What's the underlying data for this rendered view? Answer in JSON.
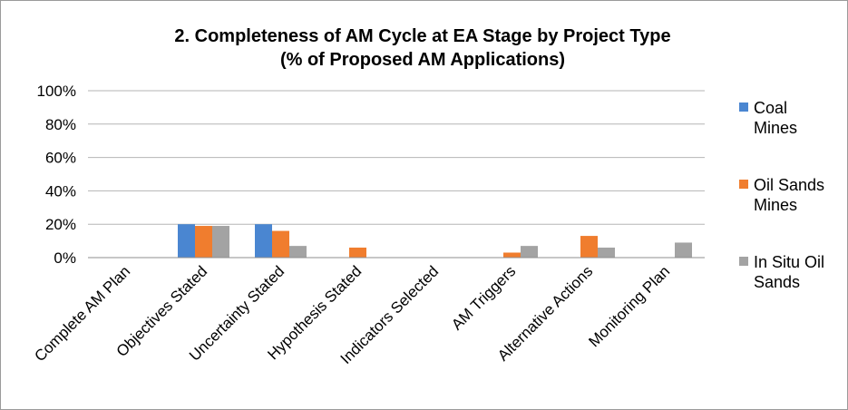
{
  "chart_data": {
    "type": "bar",
    "title": "2. Completeness of AM Cycle at EA Stage by Project Type",
    "subtitle": "(% of Proposed AM Applications)",
    "categories": [
      "Complete AM Plan",
      "Objectives Stated",
      "Uncertainty Stated",
      "Hypothesis Stated",
      "Indicators Selected",
      "AM Triggers",
      "Alternative Actions",
      "Monitoring Plan"
    ],
    "series": [
      {
        "name": "Coal Mines",
        "legend_lines": [
          "Coal",
          "Mines"
        ],
        "color": "#4a86d1",
        "values": [
          0,
          20,
          20,
          0,
          0,
          0,
          0,
          0
        ]
      },
      {
        "name": "Oil Sands Mines",
        "legend_lines": [
          "Oil Sands",
          "Mines"
        ],
        "color": "#f07d2e",
        "values": [
          0,
          19,
          16,
          6,
          0,
          3,
          13,
          0
        ]
      },
      {
        "name": "In Situ Oil Sands",
        "legend_lines": [
          "In Situ Oil",
          "Sands"
        ],
        "color": "#a3a3a3",
        "values": [
          0,
          19,
          7,
          0,
          0,
          7,
          6,
          9
        ]
      }
    ],
    "yticks": [
      "0%",
      "20%",
      "40%",
      "60%",
      "80%",
      "100%"
    ],
    "ylim": [
      0,
      100
    ],
    "grid": true,
    "legend": "right"
  }
}
